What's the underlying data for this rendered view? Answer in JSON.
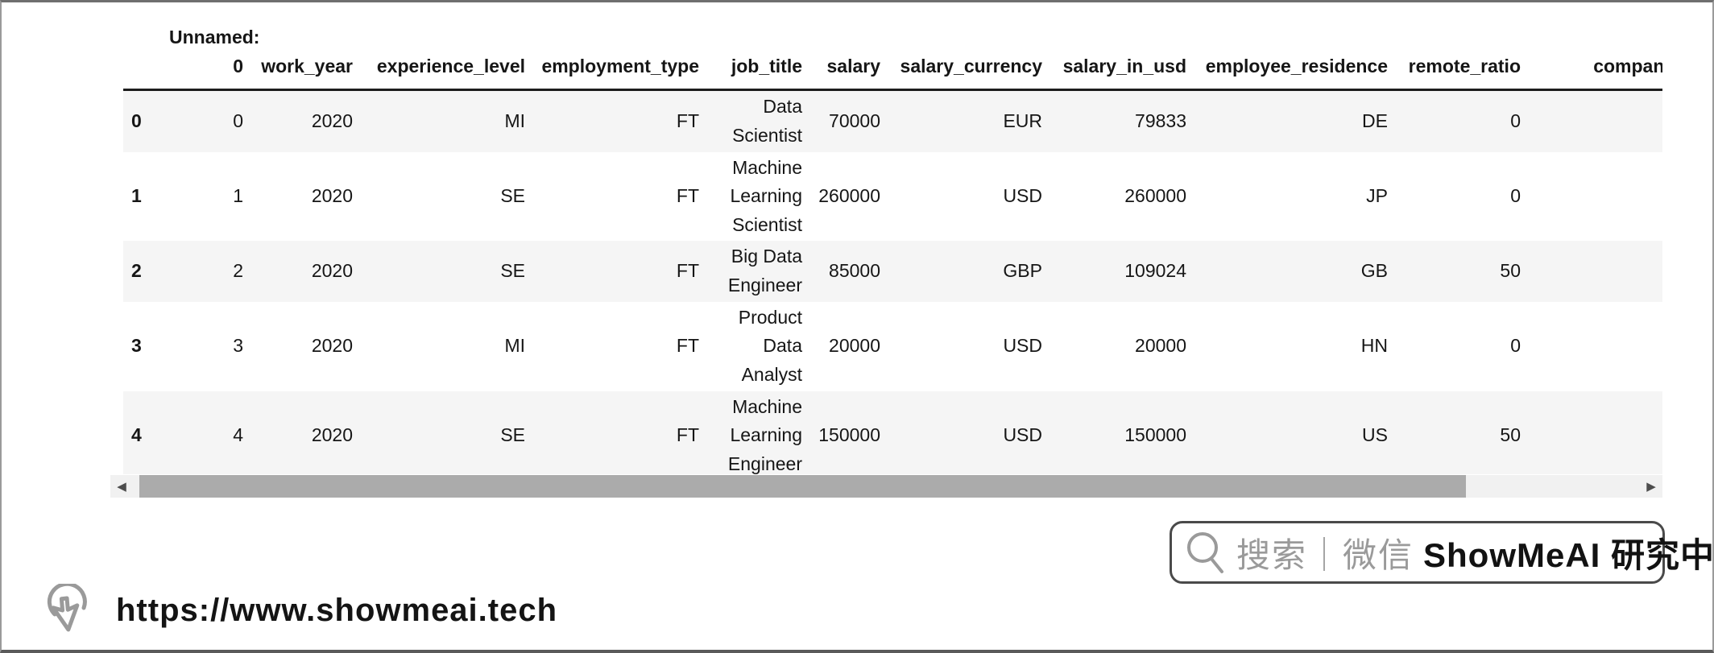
{
  "table": {
    "columns": [
      "",
      "Unnamed: 0",
      "work_year",
      "experience_level",
      "employment_type",
      "job_title",
      "salary",
      "salary_currency",
      "salary_in_usd",
      "employee_residence",
      "remote_ratio",
      "company_loca"
    ],
    "rows": [
      [
        "0",
        "0",
        "2020",
        "MI",
        "FT",
        "Data Scientist",
        "70000",
        "EUR",
        "79833",
        "DE",
        "0",
        ""
      ],
      [
        "1",
        "1",
        "2020",
        "SE",
        "FT",
        "Machine Learning Scientist",
        "260000",
        "USD",
        "260000",
        "JP",
        "0",
        ""
      ],
      [
        "2",
        "2",
        "2020",
        "SE",
        "FT",
        "Big Data Engineer",
        "85000",
        "GBP",
        "109024",
        "GB",
        "50",
        ""
      ],
      [
        "3",
        "3",
        "2020",
        "MI",
        "FT",
        "Product Data Analyst",
        "20000",
        "USD",
        "20000",
        "HN",
        "0",
        ""
      ],
      [
        "4",
        "4",
        "2020",
        "SE",
        "FT",
        "Machine Learning Engineer",
        "150000",
        "USD",
        "150000",
        "US",
        "50",
        ""
      ]
    ]
  },
  "scrollbar": {
    "left_arrow": "◀",
    "right_arrow": "▶"
  },
  "watermark": {
    "search_label": "搜索｜微信",
    "brand": "ShowMeAI 研究中心"
  },
  "footer": {
    "url": "https://www.showmeai.tech"
  },
  "colors": {
    "row_stripe": "#f5f5f5",
    "header_rule": "#1c1c1c",
    "scrollbar_thumb": "#ababab",
    "scrollbar_track": "#f1f1f1",
    "badge_border": "#4a4a4a",
    "muted_gray": "#9a9a9a"
  }
}
